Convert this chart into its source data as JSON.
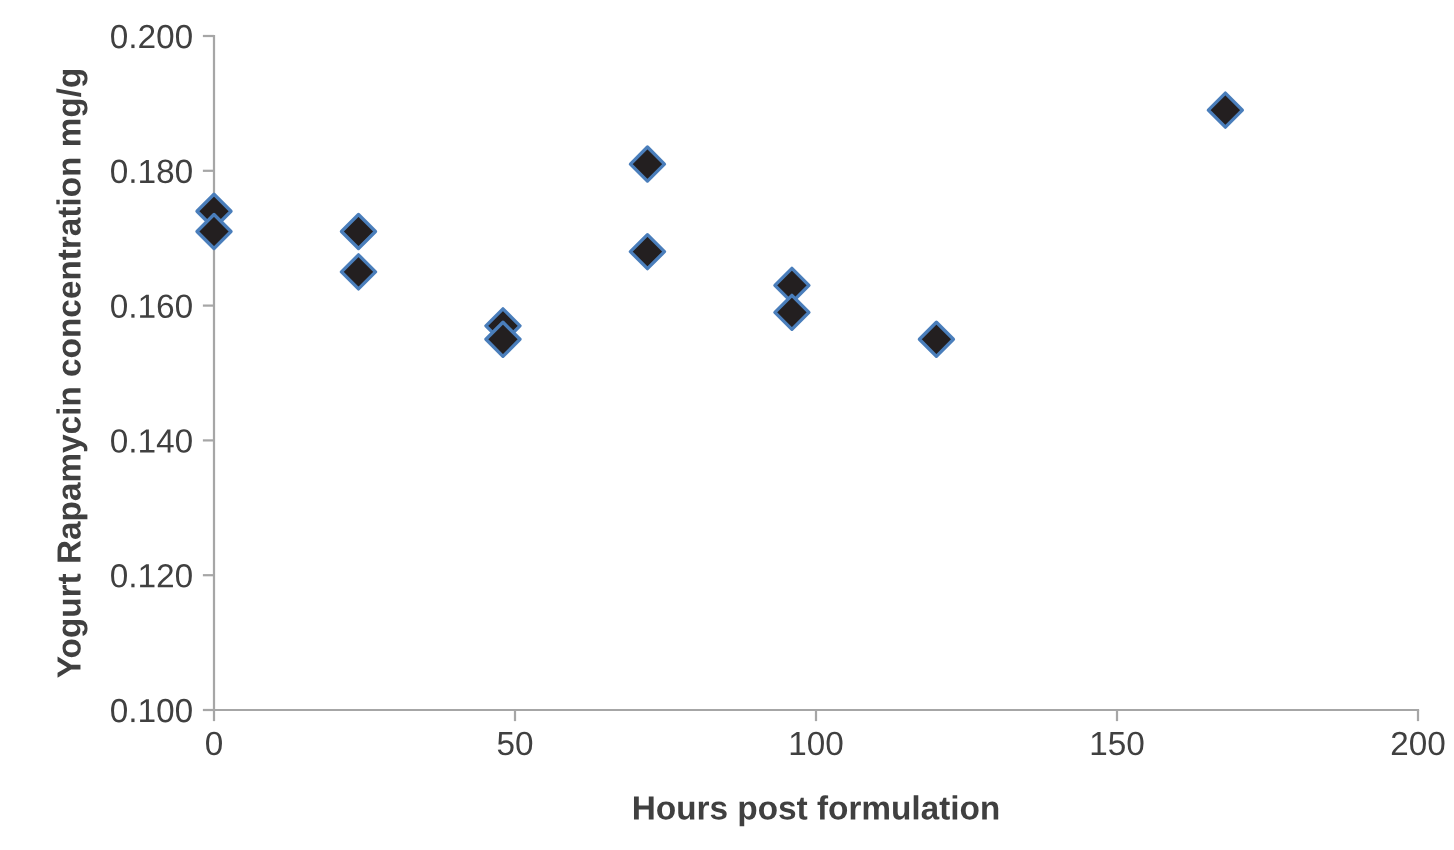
{
  "chart_data": {
    "type": "scatter",
    "xlabel": "Hours post formulation",
    "ylabel": "Yogurt Rapamycin concentration mg/g",
    "series": [
      {
        "color": "#231f20",
        "x": [
          0,
          0,
          24,
          24,
          48,
          48,
          72,
          72,
          96,
          96,
          120,
          168
        ],
        "values": [
          0.174,
          0.171,
          0.171,
          0.165,
          0.157,
          0.155,
          0.181,
          0.168,
          0.163,
          0.159,
          0.155,
          0.189
        ]
      }
    ],
    "marker": "diamond",
    "grid": false,
    "legend": false,
    "xlim": [
      0,
      200
    ],
    "xticks": [
      0,
      50,
      100,
      150,
      200
    ],
    "ylim": [
      0.1,
      0.2
    ],
    "yticks": [
      {
        "value": 0.1,
        "label": "0.100"
      },
      {
        "value": 0.12,
        "label": "0.120"
      },
      {
        "value": 0.14,
        "label": "0.140"
      },
      {
        "value": 0.16,
        "label": "0.160"
      },
      {
        "value": 0.18,
        "label": "0.180"
      },
      {
        "value": 0.2,
        "label": "0.200"
      }
    ]
  }
}
